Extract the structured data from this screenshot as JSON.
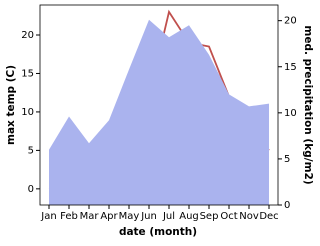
{
  "chart_data": {
    "type": "line-area",
    "x_label": "date (month)",
    "y_label": "max temp (C)",
    "y2_label": "med. precipitation (kg/m2)",
    "categories": [
      "Jan",
      "Feb",
      "Mar",
      "Apr",
      "May",
      "Jun",
      "Jul",
      "Aug",
      "Sep",
      "Oct",
      "Nov",
      "Dec"
    ],
    "series": [
      {
        "name": "max temp",
        "color": "#c0504d",
        "kind": "line",
        "values": [
          0,
          0.2,
          0,
          3.5,
          6,
          12,
          23,
          19,
          18.5,
          12,
          8,
          5
        ]
      },
      {
        "name": "med. precipitation",
        "color": "#aab3ee",
        "kind": "area",
        "axis": "y2",
        "values": [
          6,
          9.6,
          6.7,
          9.2,
          14.7,
          20.1,
          18.2,
          19.5,
          16.3,
          12,
          10.7,
          11
        ]
      }
    ],
    "ylim": [
      -2.1,
      23.9
    ],
    "yticks": [
      0,
      5,
      10,
      15,
      20
    ],
    "y2lim": [
      0,
      21.7
    ],
    "y2ticks": [
      0,
      5,
      10,
      15,
      20
    ]
  }
}
